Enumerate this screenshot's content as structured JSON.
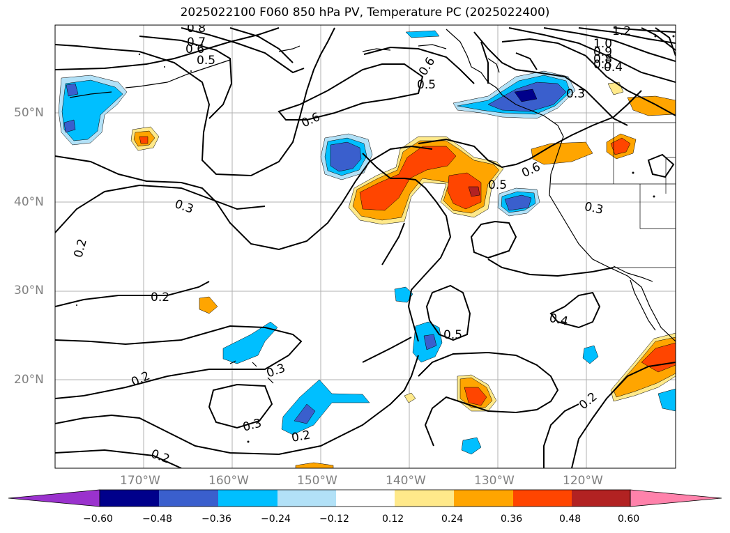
{
  "title": "2025022100 F060 850 hPa PV, Temperature PC (2025022400)",
  "lon_ticks": [
    "170°W",
    "160°W",
    "150°W",
    "140°W",
    "130°W",
    "120°W"
  ],
  "lat_ticks": [
    "50°N",
    "40°N",
    "30°N",
    "20°N"
  ],
  "colorbar": {
    "colors": [
      "#9a32cd",
      "#00008b",
      "#3a5fcd",
      "#00bfff",
      "#b2e1f7",
      "#ffffff",
      "#ffe98a",
      "#ffa500",
      "#ff4500",
      "#b22222",
      "#ff82ab"
    ],
    "labels": [
      "−0.60",
      "−0.48",
      "−0.36",
      "−0.24",
      "−0.12",
      "0.12",
      "0.24",
      "0.36",
      "0.48",
      "0.60"
    ]
  },
  "contour_labels": [
    "0.8",
    "0.7",
    "0.6",
    "0.5",
    "0.6",
    "0.5",
    "0.6",
    "0.3",
    "1.2",
    "1.0",
    "0.9",
    "0.8",
    "0.5",
    "0.4",
    "0.3",
    "0.6",
    "0.5",
    "0.3",
    "0.2",
    "0.3",
    "0.2",
    "0.5",
    "0.4",
    "0.2",
    "0.3",
    "0.2",
    "0.2",
    "0.2",
    "0.2"
  ]
}
